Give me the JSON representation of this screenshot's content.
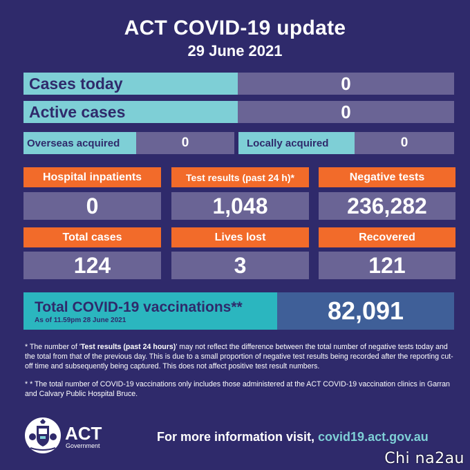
{
  "header": {
    "title": "ACT COVID-19 update",
    "date": "29 June 2021"
  },
  "summary": {
    "cases_today_label": "Cases today",
    "cases_today_value": "0",
    "active_cases_label": "Active cases",
    "active_cases_value": "0",
    "overseas_label": "Overseas acquired",
    "overseas_value": "0",
    "locally_label": "Locally acquired",
    "locally_value": "0"
  },
  "stats": [
    {
      "label": "Hospital inpatients",
      "value": "0"
    },
    {
      "label": "Test results (past 24 h)*",
      "value": "1,048"
    },
    {
      "label": "Negative tests",
      "value": "236,282"
    },
    {
      "label": "Total cases",
      "value": "124"
    },
    {
      "label": "Lives lost",
      "value": "3"
    },
    {
      "label": "Recovered",
      "value": "121"
    }
  ],
  "vaccinations": {
    "label": "Total COVID-19 vaccinations**",
    "sub": "As of 11.59pm 28 June 2021",
    "value": "82,091"
  },
  "notes": {
    "note1_prefix": "* The number of '",
    "note1_bold": "Test results (past 24 hours)",
    "note1_rest": "' may not reflect the difference between the total number of negative tests today and the total from that of the previous day. This is due to a small proportion of negative test results being recorded after the reporting cut-off time and subsequently being captured. This does not affect positive test result numbers.",
    "note2": "* * The total number of COVID-19 vaccinations only includes those administered at the ACT COVID-19 vaccination clinics in Garran and Calvary Public Hospital Bruce."
  },
  "footer": {
    "logo_word": "ACT",
    "logo_sub": "Government",
    "info_text": "For more information visit, ",
    "info_link": "covid19.act.gov.au"
  },
  "watermark": "Chi na2au",
  "colors": {
    "background": "#2f2a6b",
    "cyan": "#7ecfd6",
    "purple_value": "#6a6495",
    "orange": "#f26b2a",
    "teal": "#2bb6bf",
    "blue_value": "#3f5f98"
  }
}
